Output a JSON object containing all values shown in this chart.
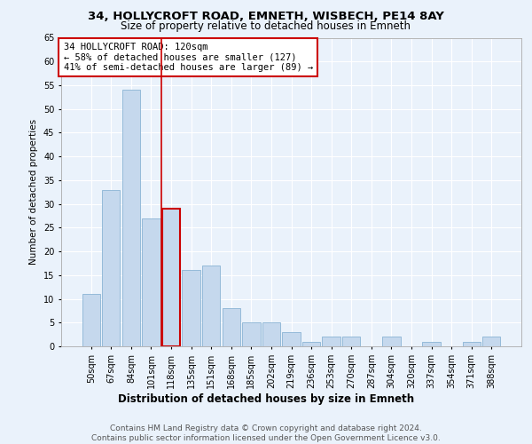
{
  "title1": "34, HOLLYCROFT ROAD, EMNETH, WISBECH, PE14 8AY",
  "title2": "Size of property relative to detached houses in Emneth",
  "xlabel": "Distribution of detached houses by size in Emneth",
  "ylabel": "Number of detached properties",
  "categories": [
    "50sqm",
    "67sqm",
    "84sqm",
    "101sqm",
    "118sqm",
    "135sqm",
    "151sqm",
    "168sqm",
    "185sqm",
    "202sqm",
    "219sqm",
    "236sqm",
    "253sqm",
    "270sqm",
    "287sqm",
    "304sqm",
    "320sqm",
    "337sqm",
    "354sqm",
    "371sqm",
    "388sqm"
  ],
  "values": [
    11,
    33,
    54,
    27,
    29,
    16,
    17,
    8,
    5,
    5,
    3,
    1,
    2,
    2,
    0,
    2,
    0,
    1,
    0,
    1,
    2
  ],
  "bar_color": "#c5d8ed",
  "bar_edge_color": "#8ab4d4",
  "highlight_index": 4,
  "highlight_edge_color": "#cc0000",
  "vline_color": "#cc0000",
  "annotation_text": "34 HOLLYCROFT ROAD: 120sqm\n← 58% of detached houses are smaller (127)\n41% of semi-detached houses are larger (89) →",
  "annotation_box_color": "white",
  "annotation_box_edge_color": "#cc0000",
  "ylim": [
    0,
    65
  ],
  "yticks": [
    0,
    5,
    10,
    15,
    20,
    25,
    30,
    35,
    40,
    45,
    50,
    55,
    60,
    65
  ],
  "footer": "Contains HM Land Registry data © Crown copyright and database right 2024.\nContains public sector information licensed under the Open Government Licence v3.0.",
  "bg_color": "#eaf2fb",
  "plot_bg_color": "#eaf2fb",
  "grid_color": "white",
  "title1_fontsize": 9.5,
  "title2_fontsize": 8.5,
  "xlabel_fontsize": 8.5,
  "ylabel_fontsize": 7.5,
  "tick_fontsize": 7,
  "annotation_fontsize": 7.5,
  "footer_fontsize": 6.5
}
